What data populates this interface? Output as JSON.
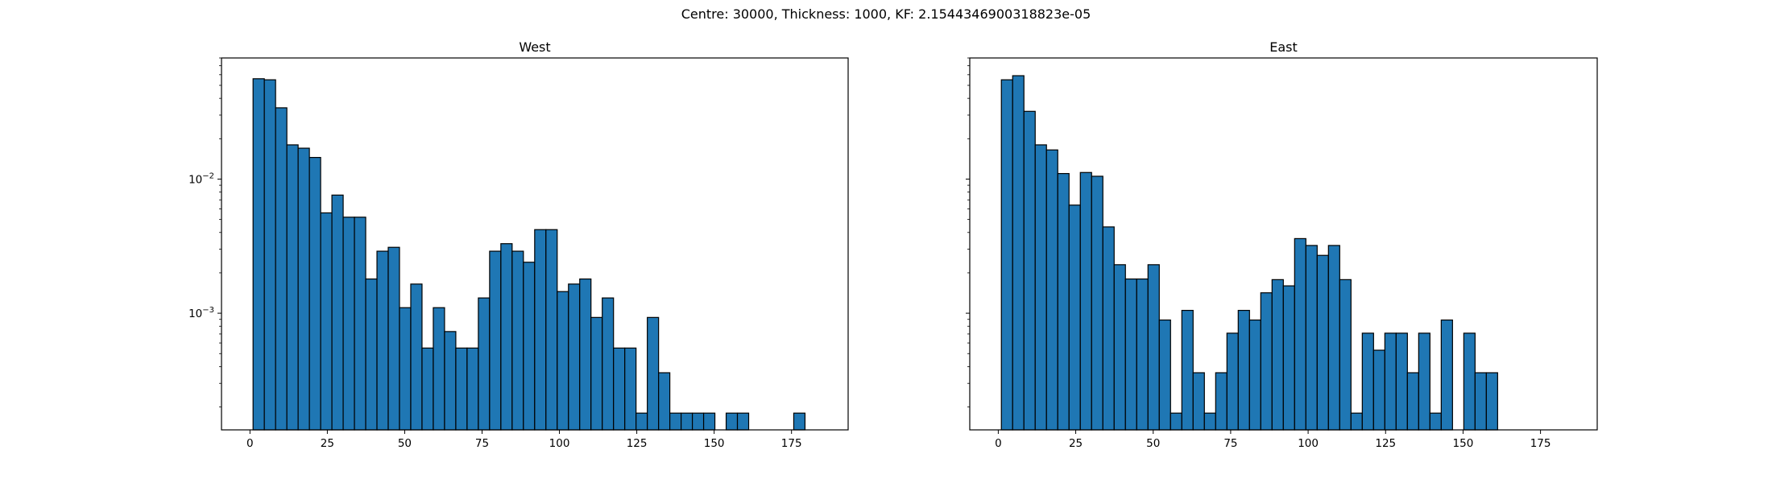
{
  "figure": {
    "suptitle": "Centre: 30000, Thickness: 1000, KF: 2.1544346900318823e-05"
  },
  "chart_data": [
    {
      "type": "bar",
      "subtype": "histogram",
      "title": "West",
      "xlabel": "",
      "ylabel": "",
      "yscale": "log",
      "xlim": [
        -9.2,
        193.3
      ],
      "ylim": [
        0.000135,
        0.08
      ],
      "xticks": [
        0,
        25,
        50,
        75,
        100,
        125,
        150,
        175
      ],
      "yticks": [
        {
          "value": 0.01,
          "label": "10^-2"
        },
        {
          "value": 0.001,
          "label": "10^-3"
        }
      ],
      "bin_start": 1,
      "bin_width": 3.64,
      "bar_color": "#1f77b4",
      "edge_color": "#000000",
      "values": [
        0.056,
        0.055,
        0.034,
        0.018,
        0.017,
        0.0145,
        0.0056,
        0.0076,
        0.0052,
        0.0052,
        0.0018,
        0.0029,
        0.0031,
        0.0011,
        0.00165,
        0.00055,
        0.0011,
        0.00073,
        0.00055,
        0.00055,
        0.0013,
        0.0029,
        0.0033,
        0.0029,
        0.0024,
        0.0042,
        0.0042,
        0.00145,
        0.00165,
        0.0018,
        0.00093,
        0.0013,
        0.00055,
        0.00055,
        0.00018,
        0.00093,
        0.00036,
        0.00018,
        0.00018,
        0.00018,
        0.00018,
        0,
        0.00018,
        0.00018,
        0,
        0,
        0,
        0,
        0.00018
      ]
    },
    {
      "type": "bar",
      "subtype": "histogram",
      "title": "East",
      "xlabel": "",
      "ylabel": "",
      "yscale": "log",
      "xlim": [
        -9.2,
        193.3
      ],
      "ylim": [
        0.000135,
        0.08
      ],
      "xticks": [
        0,
        25,
        50,
        75,
        100,
        125,
        150,
        175
      ],
      "yticks": [
        {
          "value": 0.01,
          "label": "10^-2"
        },
        {
          "value": 0.001,
          "label": "10^-3"
        }
      ],
      "y_ticklabels_visible": false,
      "bin_start": 1,
      "bin_width": 3.64,
      "bar_color": "#1f77b4",
      "edge_color": "#000000",
      "values": [
        0.055,
        0.059,
        0.032,
        0.018,
        0.0165,
        0.011,
        0.0064,
        0.0112,
        0.0105,
        0.0044,
        0.0023,
        0.0018,
        0.0018,
        0.0023,
        0.00089,
        0.00018,
        0.00105,
        0.00036,
        0.00018,
        0.00036,
        0.00071,
        0.00105,
        0.00089,
        0.00142,
        0.00178,
        0.0016,
        0.0036,
        0.0032,
        0.0027,
        0.0032,
        0.00178,
        0.00018,
        0.00071,
        0.00053,
        0.00071,
        0.00071,
        0.00036,
        0.00071,
        0.00018,
        0.00089,
        0,
        0.00071,
        0.00036,
        0.00036
      ]
    }
  ]
}
